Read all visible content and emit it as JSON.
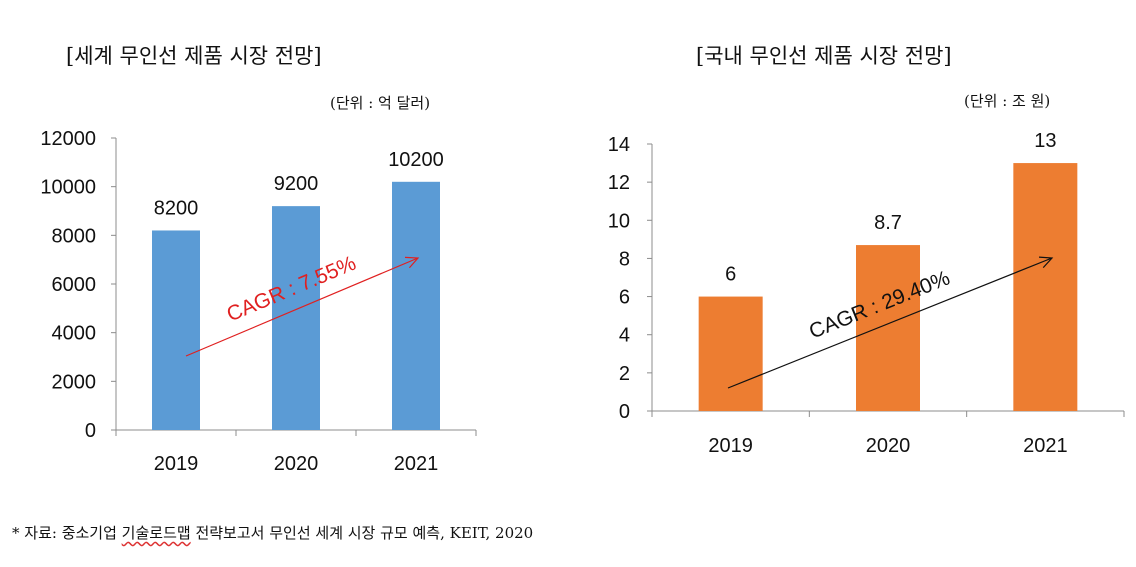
{
  "charts": [
    {
      "title": "[세계 무인선 제품 시장 전망]",
      "unit": "(단위 : 억 달러)",
      "bar_color": "#5B9BD5",
      "annotation": {
        "text": "CAGR : 7.55%",
        "color": "#E02020"
      }
    },
    {
      "title": "[국내 무인선 제품 시장 전망]",
      "unit": "(단위 : 조 원)",
      "bar_color": "#ED7D31",
      "annotation": {
        "text": "CAGR : 29.40%",
        "color": "#111111"
      }
    }
  ],
  "footer": {
    "prefix": "* 자료: 중소기업 ",
    "squiggle": "기술로드맵",
    "suffix": " 전략보고서 무인선 세계 시장 규모 예측, KEIT, 2020"
  },
  "chart_data": [
    {
      "type": "bar",
      "title": "[세계 무인선 제품 시장 전망]",
      "categories": [
        "2019",
        "2020",
        "2021"
      ],
      "values": [
        8200,
        9200,
        10200
      ],
      "data_labels": [
        "8200",
        "9200",
        "10200"
      ],
      "yticks": [
        "0",
        "2000",
        "4000",
        "6000",
        "8000",
        "10000",
        "12000"
      ],
      "ylim": [
        0,
        12000
      ],
      "unit": "(단위 : 억 달러)",
      "grid": false,
      "legend": "none",
      "annotation": "CAGR : 7.55%"
    },
    {
      "type": "bar",
      "title": "[국내 무인선 제품 시장 전망]",
      "categories": [
        "2019",
        "2020",
        "2021"
      ],
      "values": [
        6,
        8.7,
        13
      ],
      "data_labels": [
        "6",
        "8.7",
        "13"
      ],
      "yticks": [
        "0",
        "2",
        "4",
        "6",
        "8",
        "10",
        "12",
        "14"
      ],
      "ylim": [
        0,
        14
      ],
      "unit": "(단위 : 조 원)",
      "grid": false,
      "legend": "none",
      "annotation": "CAGR : 29.40%"
    }
  ]
}
